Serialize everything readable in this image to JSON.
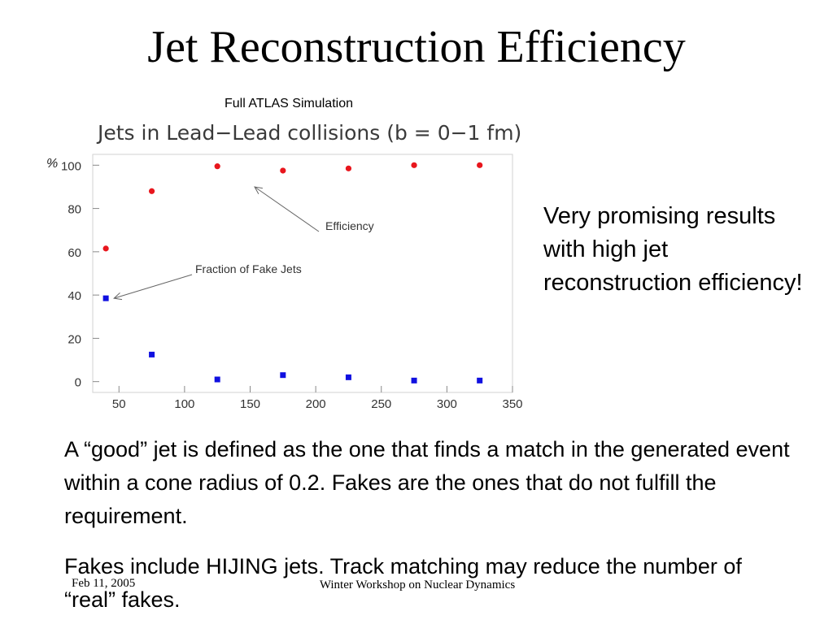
{
  "slide": {
    "title": "Jet Reconstruction Efficiency",
    "sim_label": "Full ATLAS Simulation",
    "side_text": "Very promising results with high jet reconstruction efficiency!",
    "paragraph_1": "A “good” jet is defined as the one that finds a match in the generated event within a cone radius of 0.2. Fakes are the ones that do not fulfill the requirement.",
    "paragraph_2": "Fakes include HIJING jets. Track matching may reduce the number of “real” fakes.",
    "footer_date": "Feb 11, 2005",
    "footer_event": "Winter Workshop on Nuclear Dynamics"
  },
  "chart_data": {
    "type": "scatter",
    "title": "Jets in Lead−Lead collisions (b = 0−1 fm)",
    "ylabel": "%",
    "xlabel": "",
    "xlim": [
      30,
      350
    ],
    "ylim": [
      -5,
      105
    ],
    "x_ticks": [
      50,
      100,
      150,
      200,
      250,
      300,
      350
    ],
    "y_ticks": [
      0,
      20,
      40,
      60,
      80,
      100
    ],
    "grid": false,
    "series": [
      {
        "name": "Efficiency",
        "marker": "circle",
        "color": "#e8161d",
        "points": [
          [
            40,
            61.5
          ],
          [
            75,
            88
          ],
          [
            125,
            99.5
          ],
          [
            175,
            97.5
          ],
          [
            225,
            98.5
          ],
          [
            275,
            100
          ],
          [
            325,
            100
          ]
        ]
      },
      {
        "name": "Fraction of Fake Jets",
        "marker": "square",
        "color": "#1010e0",
        "points": [
          [
            40,
            38.5
          ],
          [
            75,
            12.5
          ],
          [
            125,
            1
          ],
          [
            175,
            3
          ],
          [
            225,
            2
          ],
          [
            275,
            0.5
          ],
          [
            325,
            0.5
          ]
        ]
      }
    ],
    "annotations": [
      {
        "text": "Efficiency",
        "arrow_to": [
          75,
          88
        ]
      },
      {
        "text": "Fraction of Fake Jets",
        "arrow_to": [
          40,
          38.5
        ]
      }
    ]
  }
}
